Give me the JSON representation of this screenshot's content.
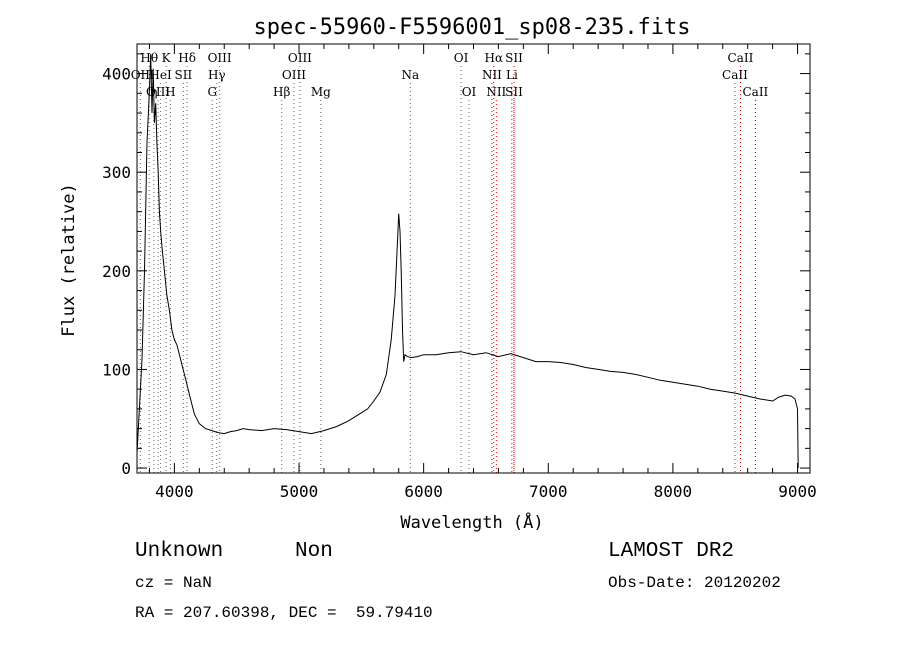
{
  "chart_data": {
    "type": "line",
    "title": "spec-55960-F5596001_sp08-235.fits",
    "xlabel": "Wavelength (Å)",
    "ylabel": "Flux (relative)",
    "xlim": [
      3700,
      9100
    ],
    "ylim": [
      -5,
      430
    ],
    "xticks": [
      4000,
      5000,
      6000,
      7000,
      8000,
      9000
    ],
    "yticks": [
      0,
      100,
      200,
      300,
      400
    ],
    "grid": false,
    "line_color": "#000000",
    "marker_color": "#cc0000",
    "series": [
      {
        "x": [
          3700,
          3740,
          3760,
          3780,
          3800,
          3810,
          3820,
          3830,
          3840,
          3850,
          3860,
          3870,
          3880,
          3890,
          3900,
          3920,
          3940,
          3960,
          3980,
          4000,
          4020,
          4040,
          4060,
          4080,
          4100,
          4120,
          4140,
          4160,
          4180,
          4200,
          4250,
          4300,
          4350,
          4400,
          4450,
          4500,
          4550,
          4600,
          4700,
          4800,
          4900,
          5000,
          5100,
          5200,
          5300,
          5400,
          5500,
          5550,
          5600,
          5650,
          5700,
          5740,
          5770,
          5790,
          5800,
          5810,
          5820,
          5830,
          5840,
          5850,
          5870,
          5900,
          5950,
          6000,
          6100,
          6200,
          6300,
          6400,
          6500,
          6600,
          6700,
          6800,
          6900,
          7000,
          7100,
          7200,
          7300,
          7400,
          7500,
          7600,
          7700,
          7800,
          7900,
          8000,
          8100,
          8200,
          8300,
          8400,
          8500,
          8600,
          8700,
          8800,
          8850,
          8900,
          8950,
          8980,
          9000,
          9005
        ],
        "y": [
          15,
          110,
          200,
          330,
          385,
          420,
          360,
          405,
          350,
          370,
          330,
          300,
          260,
          240,
          225,
          200,
          175,
          160,
          140,
          130,
          125,
          115,
          105,
          95,
          85,
          75,
          65,
          55,
          50,
          45,
          40,
          38,
          36,
          35,
          37,
          38,
          40,
          39,
          38,
          40,
          39,
          37,
          35,
          38,
          42,
          48,
          56,
          60,
          68,
          77,
          95,
          130,
          175,
          230,
          258,
          240,
          200,
          140,
          108,
          115,
          113,
          112,
          113,
          115,
          115,
          117,
          118,
          115,
          117,
          113,
          116,
          112,
          108,
          108,
          107,
          105,
          102,
          100,
          98,
          97,
          95,
          92,
          89,
          87,
          85,
          83,
          80,
          78,
          76,
          73,
          70,
          68,
          72,
          74,
          73,
          70,
          60,
          0
        ]
      }
    ],
    "line_markers": [
      {
        "label": "Hθ",
        "x": 3798,
        "row": 1
      },
      {
        "label": "OII",
        "x": 3727,
        "row": 2
      },
      {
        "label": "OIII",
        "x": 3869,
        "row": 3
      },
      {
        "label": "K",
        "x": 3934,
        "row": 1
      },
      {
        "label": "HeI",
        "x": 3889,
        "row": 2
      },
      {
        "label": "η",
        "x": 3835,
        "row": 3
      },
      {
        "label": "SII",
        "x": 4072,
        "row": 2
      },
      {
        "label": "H",
        "x": 3968,
        "row": 3
      },
      {
        "label": "Hδ",
        "x": 4102,
        "row": 1
      },
      {
        "label": "OIII",
        "x": 4363,
        "row": 1
      },
      {
        "label": "Hγ",
        "x": 4340,
        "row": 2
      },
      {
        "label": "G",
        "x": 4304,
        "row": 3
      },
      {
        "label": "OIII",
        "x": 5007,
        "row": 1
      },
      {
        "label": "OIII",
        "x": 4959,
        "row": 2
      },
      {
        "label": "Hβ",
        "x": 4861,
        "row": 3
      },
      {
        "label": "Mg",
        "x": 5175,
        "row": 3
      },
      {
        "label": "Na",
        "x": 5893,
        "row": 2
      },
      {
        "label": "OI",
        "x": 6300,
        "row": 1
      },
      {
        "label": "OI",
        "x": 6364,
        "row": 3
      },
      {
        "label": "Hα",
        "x": 6563,
        "row": 1
      },
      {
        "label": "SII",
        "x": 6725,
        "row": 1
      },
      {
        "label": "NII",
        "x": 6548,
        "row": 2
      },
      {
        "label": "Li",
        "x": 6708,
        "row": 2
      },
      {
        "label": "NII",
        "x": 6583,
        "row": 3
      },
      {
        "label": "SII",
        "x": 6725,
        "row": 3
      },
      {
        "label": "CaII",
        "x": 8542,
        "row": 1
      },
      {
        "label": "CaII",
        "x": 8498,
        "row": 2
      },
      {
        "label": "CaII",
        "x": 8662,
        "row": 3
      }
    ]
  },
  "footer": {
    "classification": "Unknown",
    "subclass": "Non",
    "survey": "LAMOST DR2",
    "redshift": "cz = NaN",
    "obs_date": "Obs-Date: 20120202",
    "coordinates": "RA = 207.60398, DEC =  59.79410"
  }
}
